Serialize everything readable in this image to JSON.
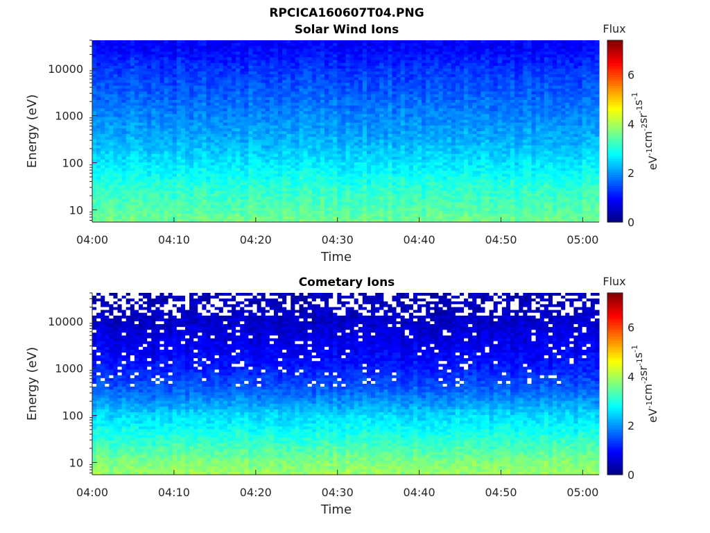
{
  "figure_title": "RPCICA160607T04.PNG",
  "colorbar": {
    "title": "Flux",
    "unit_base": "eV",
    "unit_exps": [
      "-1",
      "-2",
      "-1",
      "-1"
    ],
    "unit_parts": [
      "cm",
      "sr",
      "s"
    ],
    "ticks": [
      0,
      2,
      4,
      6
    ],
    "range": [
      0,
      7.4
    ],
    "colormap": "jet"
  },
  "chart_data": [
    {
      "type": "heatmap",
      "title": "Solar Wind Ions",
      "xlabel": "Time",
      "ylabel": "Energy (eV)",
      "x_tick_labels": [
        "04:00",
        "04:10",
        "04:20",
        "04:30",
        "04:40",
        "04:50",
        "05:00"
      ],
      "x_range_minutes": [
        0,
        62
      ],
      "y_scale": "log",
      "y_tick_labels": [
        "10",
        "100",
        "1000",
        "10000"
      ],
      "y_range": [
        5.5,
        40000
      ],
      "flux_profile": [
        {
          "energy": 6,
          "flux": 3.6
        },
        {
          "energy": 10,
          "flux": 3.4
        },
        {
          "energy": 30,
          "flux": 3.1
        },
        {
          "energy": 100,
          "flux": 2.6
        },
        {
          "energy": 300,
          "flux": 2.2
        },
        {
          "energy": 1000,
          "flux": 1.9
        },
        {
          "energy": 3000,
          "flux": 1.6
        },
        {
          "energy": 10000,
          "flux": 1.3
        },
        {
          "energy": 30000,
          "flux": 0.9
        }
      ]
    },
    {
      "type": "heatmap",
      "title": "Cometary Ions",
      "xlabel": "Time",
      "ylabel": "Energy (eV)",
      "x_tick_labels": [
        "04:00",
        "04:10",
        "04:20",
        "04:30",
        "04:40",
        "04:50",
        "05:00"
      ],
      "x_range_minutes": [
        0,
        62
      ],
      "y_scale": "log",
      "y_tick_labels": [
        "10",
        "100",
        "1000",
        "10000"
      ],
      "y_range": [
        5.5,
        40000
      ],
      "flux_profile": [
        {
          "energy": 6,
          "flux": 3.9
        },
        {
          "energy": 10,
          "flux": 3.7
        },
        {
          "energy": 30,
          "flux": 3.1
        },
        {
          "energy": 100,
          "flux": 2.5
        },
        {
          "energy": 300,
          "flux": 1.7
        },
        {
          "energy": 1000,
          "flux": 1.1
        },
        {
          "energy": 3000,
          "flux": 0.8
        },
        {
          "energy": 10000,
          "flux": 0.55
        },
        {
          "energy": 30000,
          "flux": 0.4
        }
      ]
    }
  ]
}
